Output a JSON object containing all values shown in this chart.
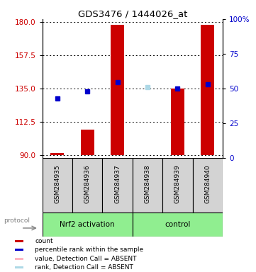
{
  "title": "GDS3476 / 1444026_at",
  "samples": [
    "GSM284935",
    "GSM284936",
    "GSM284937",
    "GSM284938",
    "GSM284939",
    "GSM284940"
  ],
  "ylim_left": [
    88,
    182
  ],
  "ylim_right": [
    0,
    100
  ],
  "yticks_left": [
    90,
    112.5,
    135,
    157.5,
    180
  ],
  "yticks_right": [
    0,
    25,
    50,
    75,
    100
  ],
  "bar_base": 90,
  "bar_heights": [
    91,
    107,
    178,
    90,
    135,
    178
  ],
  "bar_absent": [
    false,
    false,
    false,
    true,
    false,
    false
  ],
  "blue_y": [
    128,
    133,
    139,
    136,
    135,
    138
  ],
  "blue_absent": [
    false,
    false,
    false,
    true,
    false,
    false
  ],
  "bar_color": "#cc0000",
  "bar_absent_color": "#ffb6c1",
  "blue_color": "#0000cc",
  "blue_absent_color": "#add8e6",
  "left_tick_color": "#cc0000",
  "right_tick_color": "#0000cc",
  "group_bg": "#lightgray",
  "nrf2_color": "#90ee90",
  "control_color": "#90ee90",
  "legend_labels": [
    "count",
    "percentile rank within the sample",
    "value, Detection Call = ABSENT",
    "rank, Detection Call = ABSENT"
  ],
  "legend_colors": [
    "#cc0000",
    "#0000cc",
    "#ffb6c1",
    "#add8e6"
  ]
}
